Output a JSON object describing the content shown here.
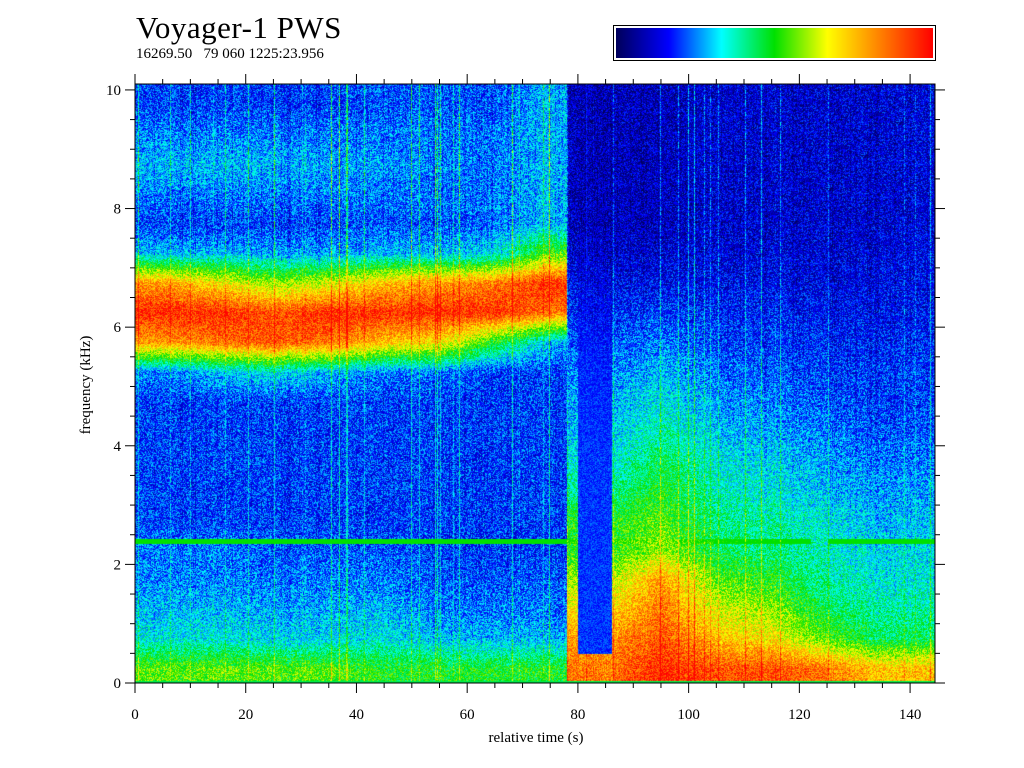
{
  "header": {
    "title": "Voyager-1 PWS",
    "subtitle": "16269.50   79 060 1225:23.956"
  },
  "colorbar": {
    "colors": [
      "#00005a",
      "#0000ff",
      "#00ffff",
      "#00e000",
      "#ffff00",
      "#ff8000",
      "#ff0000"
    ]
  },
  "chart_data": {
    "type": "heatmap",
    "title": "Voyager-1 PWS",
    "xlabel": "relative time (s)",
    "ylabel": "frequency (kHz)",
    "xlim": [
      0,
      144.5
    ],
    "ylim": [
      0,
      10.1
    ],
    "xticks": [
      0,
      20,
      40,
      60,
      80,
      100,
      120,
      140
    ],
    "yticks": [
      0,
      2,
      4,
      6,
      8,
      10
    ],
    "x_minor_step": 5,
    "y_minor_step": 0.5,
    "time_bins_s": [
      0,
      10,
      20,
      30,
      40,
      50,
      60,
      70,
      80,
      90,
      100,
      110,
      120,
      130,
      140
    ],
    "freq_bins_kHz": [
      0,
      0.5,
      1,
      1.5,
      2,
      2.5,
      3,
      3.5,
      4,
      4.5,
      5,
      5.5,
      6,
      6.5,
      7,
      7.5,
      8,
      8.5,
      9,
      9.5
    ],
    "intensity_scale": [
      0,
      1
    ],
    "intensity": [
      [
        0.55,
        0.35,
        0.3,
        0.25,
        0.25,
        0.2,
        0.2,
        0.2,
        0.2,
        0.2,
        0.25,
        0.8,
        0.95,
        0.8,
        0.3,
        0.2,
        0.25,
        0.3,
        0.25,
        0.2
      ],
      [
        0.55,
        0.35,
        0.3,
        0.25,
        0.25,
        0.2,
        0.2,
        0.2,
        0.2,
        0.2,
        0.3,
        0.85,
        0.95,
        0.7,
        0.3,
        0.2,
        0.25,
        0.3,
        0.25,
        0.2
      ],
      [
        0.55,
        0.33,
        0.28,
        0.25,
        0.22,
        0.2,
        0.2,
        0.2,
        0.2,
        0.2,
        0.35,
        0.9,
        0.9,
        0.6,
        0.28,
        0.2,
        0.25,
        0.3,
        0.25,
        0.2
      ],
      [
        0.55,
        0.33,
        0.28,
        0.25,
        0.22,
        0.2,
        0.2,
        0.2,
        0.2,
        0.2,
        0.3,
        0.85,
        0.95,
        0.65,
        0.28,
        0.2,
        0.25,
        0.28,
        0.25,
        0.2
      ],
      [
        0.5,
        0.35,
        0.3,
        0.25,
        0.22,
        0.2,
        0.2,
        0.2,
        0.2,
        0.2,
        0.25,
        0.75,
        0.95,
        0.75,
        0.3,
        0.22,
        0.25,
        0.28,
        0.25,
        0.22
      ],
      [
        0.5,
        0.3,
        0.25,
        0.22,
        0.2,
        0.2,
        0.2,
        0.2,
        0.2,
        0.2,
        0.25,
        0.7,
        0.95,
        0.8,
        0.3,
        0.22,
        0.25,
        0.25,
        0.25,
        0.22
      ],
      [
        0.5,
        0.3,
        0.25,
        0.22,
        0.2,
        0.2,
        0.2,
        0.2,
        0.2,
        0.2,
        0.2,
        0.5,
        0.95,
        0.85,
        0.35,
        0.25,
        0.25,
        0.25,
        0.25,
        0.22
      ],
      [
        0.5,
        0.3,
        0.25,
        0.22,
        0.2,
        0.2,
        0.2,
        0.2,
        0.2,
        0.2,
        0.2,
        0.3,
        0.85,
        0.95,
        0.55,
        0.3,
        0.3,
        0.3,
        0.3,
        0.3
      ],
      [
        0.85,
        0.8,
        0.7,
        0.6,
        0.5,
        0.5,
        0.4,
        0.35,
        0.3,
        0.28,
        0.25,
        0.22,
        0.18,
        0.15,
        0.12,
        0.1,
        0.1,
        0.1,
        0.1,
        0.1
      ],
      [
        0.95,
        0.9,
        0.85,
        0.8,
        0.6,
        0.55,
        0.5,
        0.45,
        0.4,
        0.35,
        0.3,
        0.25,
        0.2,
        0.15,
        0.12,
        0.1,
        0.1,
        0.1,
        0.1,
        0.1
      ],
      [
        0.9,
        0.75,
        0.65,
        0.55,
        0.45,
        0.42,
        0.38,
        0.35,
        0.3,
        0.27,
        0.24,
        0.2,
        0.18,
        0.15,
        0.13,
        0.12,
        0.12,
        0.12,
        0.12,
        0.12
      ],
      [
        0.9,
        0.7,
        0.6,
        0.5,
        0.42,
        0.4,
        0.35,
        0.32,
        0.28,
        0.25,
        0.22,
        0.2,
        0.18,
        0.15,
        0.13,
        0.12,
        0.12,
        0.12,
        0.12,
        0.12
      ],
      [
        0.85,
        0.55,
        0.45,
        0.4,
        0.38,
        0.35,
        0.3,
        0.28,
        0.25,
        0.22,
        0.2,
        0.18,
        0.16,
        0.14,
        0.13,
        0.12,
        0.12,
        0.12,
        0.12,
        0.12
      ],
      [
        0.75,
        0.45,
        0.4,
        0.35,
        0.33,
        0.3,
        0.28,
        0.25,
        0.22,
        0.2,
        0.2,
        0.18,
        0.16,
        0.15,
        0.14,
        0.13,
        0.13,
        0.13,
        0.13,
        0.13
      ],
      [
        0.75,
        0.45,
        0.4,
        0.35,
        0.33,
        0.3,
        0.28,
        0.25,
        0.22,
        0.2,
        0.2,
        0.18,
        0.16,
        0.15,
        0.14,
        0.13,
        0.13,
        0.13,
        0.13,
        0.13
      ]
    ],
    "narrowband_line_kHz": 2.4,
    "grid": false,
    "legend": "colorbar top-right"
  }
}
